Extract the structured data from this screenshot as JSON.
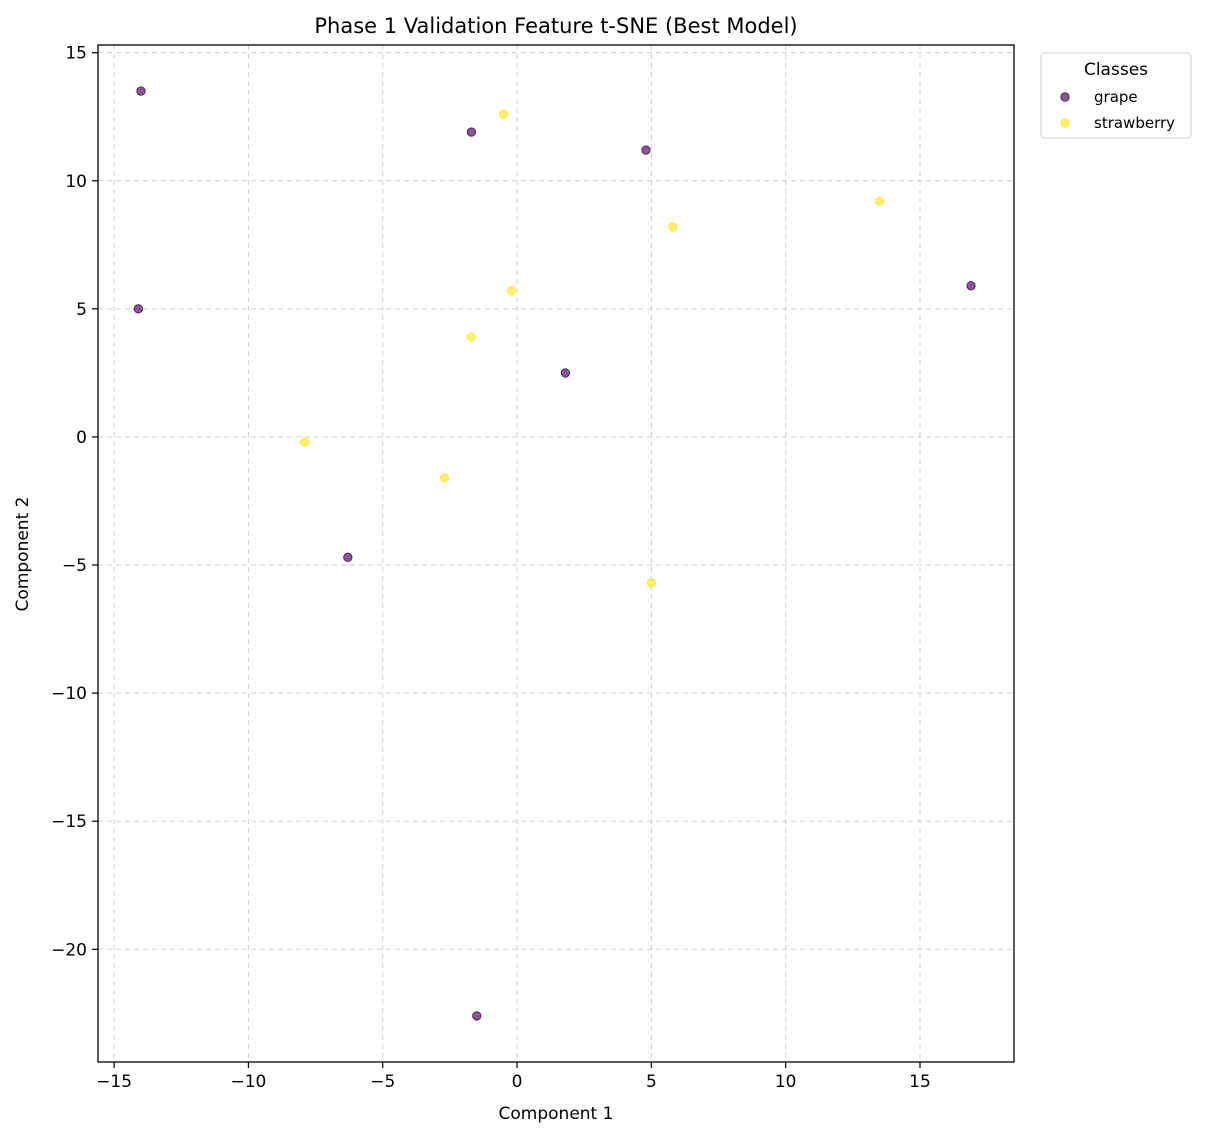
{
  "chart_data": {
    "type": "scatter",
    "title": "Phase 1 Validation Feature t-SNE (Best Model)",
    "xlabel": "Component 1",
    "ylabel": "Component 2",
    "xlim": [
      -15.6,
      18.5
    ],
    "ylim": [
      -24.4,
      15.3
    ],
    "xticks": [
      -15,
      -10,
      -5,
      0,
      5,
      10,
      15
    ],
    "yticks": [
      -20,
      -15,
      -10,
      -5,
      0,
      5,
      10,
      15
    ],
    "xtick_labels": [
      "−15",
      "−10",
      "−5",
      "0",
      "5",
      "10",
      "15"
    ],
    "ytick_labels": [
      "−20",
      "−15",
      "−10",
      "−5",
      "0",
      "5",
      "10",
      "15"
    ],
    "grid": true,
    "legend": {
      "title": "Classes",
      "placement": "outside-top-right"
    },
    "series": [
      {
        "name": "grape",
        "color": "#440154",
        "points": [
          {
            "x": -14.0,
            "y": 13.5
          },
          {
            "x": -14.1,
            "y": 5.0
          },
          {
            "x": -1.7,
            "y": 11.9
          },
          {
            "x": 4.8,
            "y": 11.2
          },
          {
            "x": 16.9,
            "y": 5.9
          },
          {
            "x": 1.8,
            "y": 2.5
          },
          {
            "x": -6.3,
            "y": -4.7
          },
          {
            "x": -1.5,
            "y": -22.6
          }
        ]
      },
      {
        "name": "strawberry",
        "color": "#fde725",
        "points": [
          {
            "x": -0.5,
            "y": 12.6
          },
          {
            "x": 5.8,
            "y": 8.2
          },
          {
            "x": 13.5,
            "y": 9.2
          },
          {
            "x": -0.2,
            "y": 5.7
          },
          {
            "x": -1.7,
            "y": 3.9
          },
          {
            "x": -7.9,
            "y": -0.2
          },
          {
            "x": -2.7,
            "y": -1.6
          },
          {
            "x": 5.0,
            "y": -5.7
          }
        ]
      }
    ]
  }
}
